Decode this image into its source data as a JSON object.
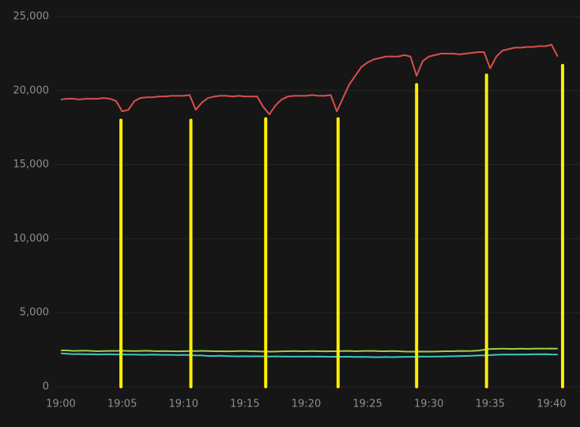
{
  "chart_data": {
    "type": "line",
    "x": [
      0,
      0.5,
      1,
      1.5,
      2,
      2.5,
      3,
      3.5,
      4,
      4.5,
      5,
      5.5,
      6,
      6.5,
      7,
      7.5,
      8,
      8.5,
      9,
      9.5,
      10,
      10.5,
      11,
      11.5,
      12,
      12.5,
      13,
      13.5,
      14,
      14.5,
      15,
      15.5,
      16,
      16.5,
      17,
      17.5,
      18,
      18.5,
      19,
      19.5,
      20,
      20.5,
      21,
      21.5,
      22,
      22.5,
      23,
      23.5,
      24,
      24.5,
      25,
      25.5,
      26,
      26.5,
      27,
      27.5,
      28,
      28.5,
      29,
      29.5,
      30,
      30.5,
      31,
      31.5,
      32,
      32.5,
      33,
      33.5,
      34,
      34.5,
      35,
      35.5,
      36,
      36.5,
      37,
      37.5,
      38,
      38.5,
      39,
      39.5,
      40,
      40.5
    ],
    "series": [
      {
        "color": "#d94f4f",
        "values": [
          19400,
          19450,
          19450,
          19400,
          19450,
          19450,
          19450,
          19500,
          19450,
          19300,
          18600,
          18700,
          19300,
          19500,
          19550,
          19550,
          19600,
          19600,
          19650,
          19650,
          19650,
          19700,
          18700,
          19200,
          19500,
          19600,
          19650,
          19650,
          19600,
          19650,
          19600,
          19600,
          19600,
          18900,
          18400,
          19000,
          19400,
          19600,
          19650,
          19650,
          19650,
          19700,
          19650,
          19650,
          19700,
          18600,
          19500,
          20400,
          21000,
          21600,
          21900,
          22100,
          22200,
          22300,
          22300,
          22300,
          22400,
          22300,
          21000,
          22000,
          22300,
          22400,
          22500,
          22500,
          22500,
          22450,
          22500,
          22550,
          22600,
          22600,
          21500,
          22300,
          22700,
          22800,
          22900,
          22900,
          22950,
          22950,
          23000,
          23000,
          23100,
          22300
        ]
      },
      {
        "color": "#a2cc45",
        "values": [
          2450,
          2450,
          2420,
          2430,
          2440,
          2420,
          2400,
          2410,
          2420,
          2420,
          2430,
          2420,
          2410,
          2420,
          2430,
          2410,
          2400,
          2410,
          2400,
          2390,
          2400,
          2410,
          2410,
          2420,
          2410,
          2400,
          2400,
          2390,
          2400,
          2410,
          2410,
          2400,
          2390,
          2380,
          2370,
          2380,
          2390,
          2400,
          2410,
          2400,
          2400,
          2410,
          2400,
          2390,
          2400,
          2400,
          2410,
          2420,
          2400,
          2410,
          2420,
          2420,
          2400,
          2400,
          2410,
          2400,
          2380,
          2370,
          2370,
          2380,
          2370,
          2380,
          2390,
          2400,
          2400,
          2420,
          2410,
          2420,
          2440,
          2500,
          2550,
          2560,
          2570,
          2560,
          2560,
          2570,
          2560,
          2570,
          2580,
          2570,
          2580,
          2570
        ]
      },
      {
        "color": "#3ec6c0",
        "values": [
          2250,
          2230,
          2200,
          2210,
          2190,
          2200,
          2180,
          2190,
          2190,
          2180,
          2180,
          2170,
          2170,
          2160,
          2160,
          2170,
          2160,
          2150,
          2150,
          2140,
          2150,
          2140,
          2120,
          2110,
          2080,
          2080,
          2090,
          2070,
          2060,
          2050,
          2060,
          2050,
          2060,
          2050,
          2040,
          2050,
          2040,
          2040,
          2030,
          2040,
          2040,
          2030,
          2040,
          2030,
          2020,
          2030,
          2020,
          2030,
          2010,
          2020,
          2010,
          2000,
          2000,
          2010,
          2000,
          2010,
          2020,
          2020,
          2030,
          2040,
          2030,
          2040,
          2040,
          2050,
          2060,
          2070,
          2080,
          2090,
          2110,
          2120,
          2140,
          2160,
          2170,
          2180,
          2170,
          2180,
          2180,
          2190,
          2190,
          2200,
          2180,
          2170
        ]
      }
    ],
    "markers": {
      "color": "#ffee00",
      "lines": [
        {
          "x": 4.9,
          "y": [
            0,
            18000
          ]
        },
        {
          "x": 10.6,
          "y": [
            0,
            18000
          ]
        },
        {
          "x": 16.7,
          "y": [
            0,
            18100
          ]
        },
        {
          "x": 22.6,
          "y": [
            0,
            18100
          ]
        },
        {
          "x": 29.0,
          "y": [
            0,
            20400
          ]
        },
        {
          "x": 34.7,
          "y": [
            0,
            21050
          ]
        },
        {
          "x": 40.9,
          "y": [
            0,
            21700
          ]
        }
      ]
    },
    "xlim": [
      0,
      41
    ],
    "xticks": [
      {
        "value": 0,
        "label": "19:00"
      },
      {
        "value": 5,
        "label": "19:05"
      },
      {
        "value": 10,
        "label": "19:10"
      },
      {
        "value": 15,
        "label": "19:15"
      },
      {
        "value": 20,
        "label": "19:20"
      },
      {
        "value": 25,
        "label": "19:25"
      },
      {
        "value": 30,
        "label": "19:30"
      },
      {
        "value": 35,
        "label": "19:35"
      },
      {
        "value": 40,
        "label": "19:40"
      }
    ],
    "ylim": [
      0,
      25000
    ],
    "yticks": [
      0,
      {
        "value": 5000,
        "label": "5,000"
      },
      {
        "value": 10000,
        "label": "10,000"
      },
      {
        "value": 15000,
        "label": "15,000"
      },
      {
        "value": 20000,
        "label": "20,000"
      },
      {
        "value": 25000,
        "label": "25,000"
      }
    ],
    "grid": true
  }
}
